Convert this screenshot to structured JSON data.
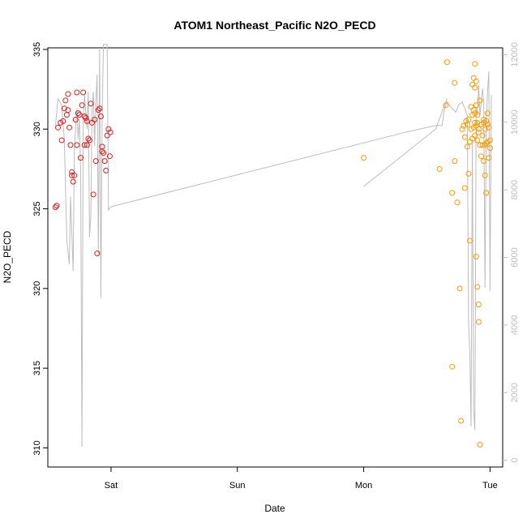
{
  "chart_data": {
    "type": "scatter",
    "title": "ATOM1 Northeast_Pacific N2O_PECD",
    "xlabel": "Date",
    "ylabel": "N2O_PECD",
    "x_ticks": [
      "Sat",
      "Sun",
      "Mon",
      "Tue"
    ],
    "x_tick_positions": [
      2,
      3,
      4,
      5
    ],
    "xlim": [
      1.5,
      5.1
    ],
    "ylim": [
      308.8,
      335.1
    ],
    "y_ticks": [
      310,
      315,
      320,
      325,
      330,
      335
    ],
    "secondary_axis": {
      "side": "right",
      "ticks": [
        0,
        2000,
        4000,
        6000,
        8000,
        10000,
        12000
      ],
      "ylim": [
        -200,
        12200
      ],
      "color": "#bdbdbd"
    },
    "grid": false,
    "series": [
      {
        "color": "#e41a1c",
        "points": [
          [
            1.56,
            325.1
          ],
          [
            1.57,
            325.2
          ],
          [
            1.58,
            330.1
          ],
          [
            1.6,
            330.4
          ],
          [
            1.61,
            329.3
          ],
          [
            1.62,
            330.5
          ],
          [
            1.63,
            331.3
          ],
          [
            1.64,
            331.8
          ],
          [
            1.65,
            330.9
          ],
          [
            1.66,
            332.2
          ],
          [
            1.67,
            330.1
          ],
          [
            1.68,
            329.0
          ],
          [
            1.69,
            327.3
          ],
          [
            1.7,
            326.7
          ],
          [
            1.71,
            327.1
          ],
          [
            1.72,
            330.6
          ],
          [
            1.73,
            332.3
          ],
          [
            1.74,
            331.0
          ],
          [
            1.75,
            330.9
          ],
          [
            1.76,
            328.2
          ],
          [
            1.77,
            331.5
          ],
          [
            1.78,
            332.3
          ],
          [
            1.79,
            330.8
          ],
          [
            1.8,
            330.7
          ],
          [
            1.81,
            330.5
          ],
          [
            1.82,
            329.4
          ],
          [
            1.83,
            329.3
          ],
          [
            1.84,
            331.6
          ],
          [
            1.85,
            330.4
          ],
          [
            1.86,
            325.9
          ],
          [
            1.87,
            330.6
          ],
          [
            1.88,
            328.0
          ],
          [
            1.89,
            322.2
          ],
          [
            1.9,
            331.2
          ],
          [
            1.91,
            331.3
          ],
          [
            1.92,
            330.8
          ],
          [
            1.93,
            328.6
          ],
          [
            1.94,
            328.5
          ],
          [
            1.95,
            328.0
          ],
          [
            1.96,
            327.4
          ],
          [
            1.97,
            329.6
          ],
          [
            1.98,
            330.0
          ],
          [
            1.99,
            328.3
          ],
          [
            1.995,
            329.8
          ],
          [
            1.73,
            329.0
          ],
          [
            1.79,
            329.0
          ],
          [
            1.81,
            329.0
          ],
          [
            1.93,
            328.9
          ],
          [
            1.69,
            327.1
          ],
          [
            1.66,
            331.2
          ]
        ]
      },
      {
        "color": "#ff9900",
        "points": [
          [
            4.65,
            331.5
          ],
          [
            4.66,
            334.2
          ],
          [
            4.7,
            326.0
          ],
          [
            4.72,
            332.9
          ],
          [
            4.74,
            325.4
          ],
          [
            4.76,
            320.0
          ],
          [
            4.77,
            311.7
          ],
          [
            4.79,
            330.2
          ],
          [
            4.8,
            326.3
          ],
          [
            4.81,
            330.5
          ],
          [
            4.82,
            330.3
          ],
          [
            4.83,
            327.2
          ],
          [
            4.84,
            323.0
          ],
          [
            4.85,
            331.4
          ],
          [
            4.86,
            330.9
          ],
          [
            4.86,
            332.8
          ],
          [
            4.87,
            330.1
          ],
          [
            4.87,
            333.2
          ],
          [
            4.88,
            334.1
          ],
          [
            4.88,
            332.6
          ],
          [
            4.89,
            331.5
          ],
          [
            4.89,
            330.2
          ],
          [
            4.9,
            330.4
          ],
          [
            4.9,
            329.3
          ],
          [
            4.9,
            320.1
          ],
          [
            4.91,
            317.9
          ],
          [
            4.91,
            319.0
          ],
          [
            4.92,
            310.2
          ],
          [
            4.93,
            328.3
          ],
          [
            4.94,
            329.0
          ],
          [
            4.95,
            330.6
          ],
          [
            4.96,
            330.0
          ],
          [
            4.96,
            327.1
          ],
          [
            4.97,
            329.1
          ],
          [
            4.97,
            326.0
          ],
          [
            4.98,
            329.2
          ],
          [
            4.98,
            330.3
          ],
          [
            4.99,
            330.1
          ],
          [
            5.0,
            328.8
          ],
          [
            5.0,
            329.3
          ],
          [
            4.99,
            328.2
          ],
          [
            4.94,
            329.6
          ],
          [
            4.95,
            330.4
          ],
          [
            4.92,
            329.0
          ],
          [
            4.95,
            328.0
          ],
          [
            4.97,
            330.5
          ],
          [
            4.88,
            329.6
          ],
          [
            4.89,
            333.0
          ],
          [
            4.86,
            329.4
          ],
          [
            4.82,
            328.9
          ],
          [
            4.85,
            330.0
          ],
          [
            4.93,
            330.3
          ],
          [
            4.92,
            331.8
          ],
          [
            4.9,
            330.9
          ],
          [
            4.96,
            329.0
          ],
          [
            4.98,
            331.0
          ],
          [
            4.91,
            330.0
          ],
          [
            4.87,
            331.2
          ],
          [
            4.84,
            329.2
          ],
          [
            4.83,
            330.6
          ],
          [
            4.8,
            329.5
          ],
          [
            4.91,
            329.8
          ],
          [
            4.89,
            322.0
          ],
          [
            4.7,
            315.1
          ],
          [
            4.72,
            328.0
          ],
          [
            4.78,
            330.0
          ],
          [
            4.88,
            331.0
          ],
          [
            4.6,
            327.5
          ],
          [
            4.88,
            330.4
          ],
          [
            4.89,
            331.5
          ],
          [
            4.0,
            328.2
          ]
        ]
      },
      {
        "color": "#bdbdbd",
        "type": "line",
        "axis": "secondary",
        "points": [
          [
            1.56,
            9900
          ],
          [
            1.58,
            10700
          ],
          [
            1.61,
            10500
          ],
          [
            1.63,
            9500
          ],
          [
            1.65,
            6500
          ],
          [
            1.67,
            5800
          ],
          [
            1.68,
            7800
          ],
          [
            1.7,
            5600
          ],
          [
            1.71,
            9200
          ],
          [
            1.72,
            9800
          ],
          [
            1.73,
            10400
          ],
          [
            1.74,
            9500
          ],
          [
            1.75,
            10100
          ],
          [
            1.76,
            8500
          ],
          [
            1.77,
            400
          ],
          [
            1.78,
            10000
          ],
          [
            1.79,
            10800
          ],
          [
            1.8,
            10300
          ],
          [
            1.81,
            9800
          ],
          [
            1.82,
            10900
          ],
          [
            1.83,
            6600
          ],
          [
            1.84,
            7200
          ],
          [
            1.85,
            10300
          ],
          [
            1.86,
            10900
          ],
          [
            1.87,
            9300
          ],
          [
            1.88,
            10600
          ],
          [
            1.89,
            11400
          ],
          [
            1.9,
            6100
          ],
          [
            1.91,
            12200
          ],
          [
            1.92,
            4800
          ],
          [
            1.93,
            10100
          ],
          [
            1.94,
            12300
          ],
          [
            1.95,
            12300
          ],
          [
            1.96,
            12300
          ],
          [
            1.97,
            12300
          ],
          [
            1.98,
            7400
          ],
          [
            2.0,
            7500
          ],
          [
            4.33,
            9700
          ],
          [
            4.57,
            9900
          ],
          [
            4.62,
            9900
          ],
          [
            4.64,
            10400
          ],
          [
            4.66,
            10600
          ],
          [
            4.7,
            10400
          ],
          [
            4.73,
            10300
          ],
          [
            4.75,
            10500
          ],
          [
            4.78,
            10600
          ],
          [
            4.8,
            10400
          ],
          [
            4.82,
            10200
          ],
          [
            4.83,
            4100
          ],
          [
            4.84,
            3200
          ],
          [
            4.85,
            1000
          ],
          [
            4.86,
            9500
          ],
          [
            4.87,
            1500
          ],
          [
            4.88,
            900
          ],
          [
            4.89,
            10400
          ],
          [
            4.9,
            10200
          ],
          [
            4.91,
            11100
          ],
          [
            4.92,
            10200
          ],
          [
            4.93,
            10600
          ],
          [
            4.94,
            11000
          ],
          [
            4.95,
            10600
          ],
          [
            4.96,
            5100
          ],
          [
            4.97,
            9900
          ],
          [
            4.98,
            10900
          ],
          [
            4.99,
            11500
          ],
          [
            5.0,
            5000
          ],
          [
            5.01,
            10800
          ]
        ]
      },
      {
        "color": "#bdbdbd",
        "type": "line",
        "axis": "secondary",
        "points": [
          [
            4.0,
            8100
          ],
          [
            4.57,
            9800
          ],
          [
            4.62,
            10300
          ],
          [
            4.66,
            10700
          ]
        ]
      }
    ]
  }
}
